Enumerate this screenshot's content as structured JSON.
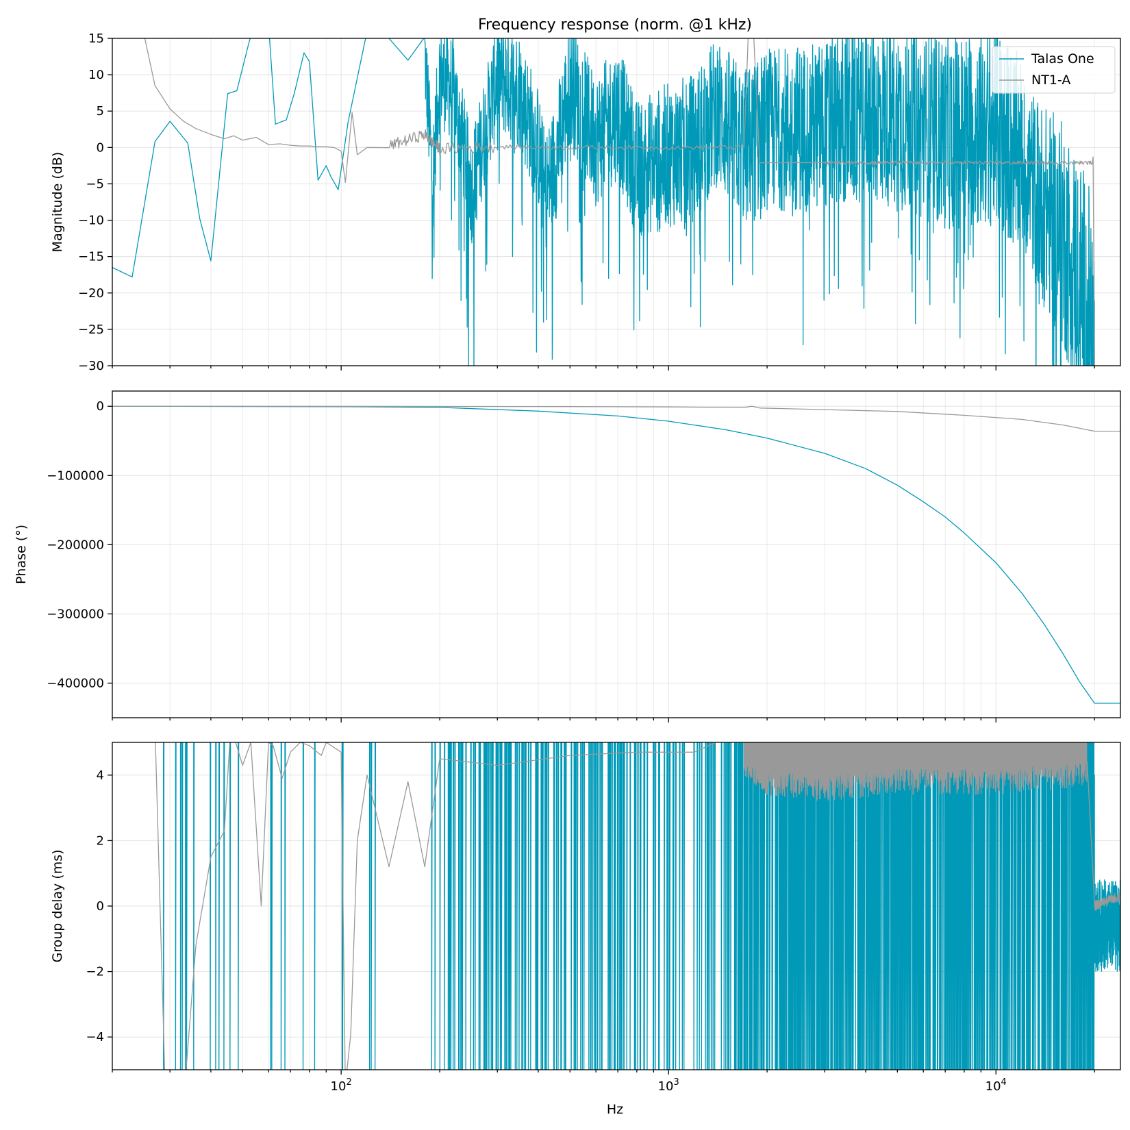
{
  "chart_data": {
    "type": "line",
    "title": "Frequency response (norm. @1 kHz)",
    "xlabel": "Hz",
    "xscale": "log",
    "xlim": [
      20,
      24000
    ],
    "x_tick_labels": [
      "10^2",
      "10^3",
      "10^4"
    ],
    "grid": true,
    "legend_position": "top-right",
    "series_meta": [
      {
        "name": "Talas One",
        "color": "#009ab8"
      },
      {
        "name": "NT1-A",
        "color": "#999999"
      }
    ],
    "panels": [
      {
        "id": "magnitude",
        "ylabel": "Magnitude (dB)",
        "ylim": [
          -30,
          15
        ],
        "yticks": [
          15,
          10,
          5,
          0,
          -5,
          -10,
          -15,
          -20,
          -25,
          -30
        ],
        "ytick_labels": [
          "15",
          "10",
          "5",
          "0",
          "−5",
          "−10",
          "−15",
          "−20",
          "−25",
          "−30"
        ],
        "series": [
          {
            "name": "Talas One",
            "x": [
              20,
              23,
              27,
              30,
              34,
              37,
              40,
              45,
              48,
              52,
              55,
              60,
              63,
              68,
              72,
              77,
              80,
              85,
              90,
              93,
              98,
              105,
              120,
              140,
              160,
              180,
              190,
              200,
              220,
              250,
              300,
              350,
              400,
              420,
              450,
              500,
              600,
              700,
              800,
              1000,
              1200,
              1400,
              1700,
              2000,
              3000,
              4000,
              5000,
              7000,
              10000,
              12000,
              14000,
              16000,
              18000,
              19500,
              20000,
              24000
            ],
            "y": [
              -16.5,
              -17.8,
              0.8,
              3.6,
              0.6,
              -9.8,
              -15.6,
              7.4,
              7.8,
              14,
              18,
              17,
              3.2,
              3.8,
              7.5,
              13,
              11.8,
              -4.5,
              -2.5,
              -4,
              -5.8,
              3.5,
              16,
              15,
              12,
              13,
              -4.5,
              10,
              8,
              -6,
              10,
              8,
              0,
              -6.5,
              -2,
              9,
              1,
              5,
              -3,
              -1,
              0,
              5,
              0,
              2.5,
              3,
              5,
              4,
              2,
              3,
              -2,
              -8,
              -12,
              -18,
              -24,
              -30,
              -30
            ]
          },
          {
            "name": "NT1-A",
            "x": [
              20,
              25,
              27,
              30,
              33,
              36,
              40,
              44,
              47,
              50,
              55,
              60,
              65,
              70,
              75,
              80,
              85,
              90,
              95,
              100,
              103,
              108,
              112,
              120,
              140,
              180,
              200,
              300,
              500,
              1000,
              1700,
              1750,
              1800,
              1900,
              3000,
              5000,
              10000,
              19800,
              20000
            ],
            "y": [
              60,
              15.5,
              8.5,
              5.3,
              3.6,
              2.6,
              1.8,
              1.2,
              1.6,
              1.0,
              1.4,
              0.4,
              0.5,
              0.3,
              0.2,
              0.2,
              0.1,
              0.1,
              0.0,
              -0.5,
              -4.8,
              4.8,
              -1.0,
              0.0,
              0.2,
              1.8,
              -0.2,
              0.1,
              0.0,
              0.0,
              0.0,
              15,
              20,
              -2.1,
              -2.1,
              -2.1,
              -2.1,
              -1.3,
              -30
            ]
          }
        ]
      },
      {
        "id": "phase",
        "ylabel": "Phase (°)",
        "ylim": [
          -450000,
          22000
        ],
        "yticks": [
          0,
          -100000,
          -200000,
          -300000,
          -400000
        ],
        "ytick_labels": [
          "0",
          "−100000",
          "−200000",
          "−300000",
          "−400000"
        ],
        "series": [
          {
            "name": "Talas One",
            "x": [
              20,
              100,
              200,
              400,
              700,
              1000,
              1500,
              2000,
              3000,
              4000,
              5000,
              6000,
              7000,
              8000,
              10000,
              12000,
              14000,
              16000,
              18000,
              20000,
              24000
            ],
            "y": [
              0,
              -600,
              -1600,
              -7000,
              -14000,
              -21500,
              -34000,
              -46000,
              -68000,
              -90000,
              -114000,
              -138000,
              -160000,
              -183000,
              -226000,
              -270000,
              -314000,
              -357000,
              -398000,
              -429000,
              -429000
            ]
          },
          {
            "name": "NT1-A",
            "x": [
              20,
              100,
              500,
              1000,
              1700,
              1800,
              1900,
              3000,
              5000,
              8000,
              12000,
              16000,
              20000,
              24000
            ],
            "y": [
              0,
              -100,
              -500,
              -1000,
              -1700,
              0,
              -2500,
              -4800,
              -7500,
              -13000,
              -19000,
              -27000,
              -36000,
              -36000
            ]
          }
        ]
      },
      {
        "id": "group-delay",
        "ylabel": "Group delay (ms)",
        "ylim": [
          -5,
          5
        ],
        "yticks": [
          4,
          2,
          0,
          -2,
          -4
        ],
        "ytick_labels": [
          "4",
          "2",
          "0",
          "−2",
          "−4"
        ],
        "series": [
          {
            "name": "Talas One",
            "x": [
              20,
              100,
              500,
              1000,
              1700,
              2000,
              5000,
              10000,
              19000,
              20000,
              21000,
              24000
            ],
            "y": [
              0,
              0,
              0,
              0,
              0,
              0,
              0,
              0,
              0,
              0,
              -1,
              -0.5
            ]
          },
          {
            "name": "NT1-A",
            "x": [
              27,
              29,
              33,
              36,
              40,
              44,
              46,
              50,
              53,
              57,
              60,
              62,
              66,
              70,
              75,
              80,
              87,
              90,
              100,
              103,
              107,
              112,
              120,
              140,
              160,
              180,
              200,
              300,
              500,
              800,
              1200,
              1700,
              2000,
              3000,
              5000,
              10000,
              19000,
              20000,
              21000,
              24000
            ],
            "y": [
              5.5,
              -5.5,
              -6,
              -1.2,
              1.5,
              2.3,
              5.5,
              4.3,
              5.0,
              0.0,
              5.0,
              4.9,
              3.9,
              4.7,
              5.0,
              4.9,
              4.6,
              5.0,
              4.7,
              -5.5,
              -3.9,
              2.0,
              4.0,
              1.2,
              3.8,
              1.2,
              4.5,
              4.3,
              4.6,
              4.7,
              4.7,
              4.8,
              4.2,
              4.0,
              4.2,
              4.2,
              4.4,
              0.0,
              0.1,
              0.3
            ]
          }
        ]
      }
    ]
  }
}
